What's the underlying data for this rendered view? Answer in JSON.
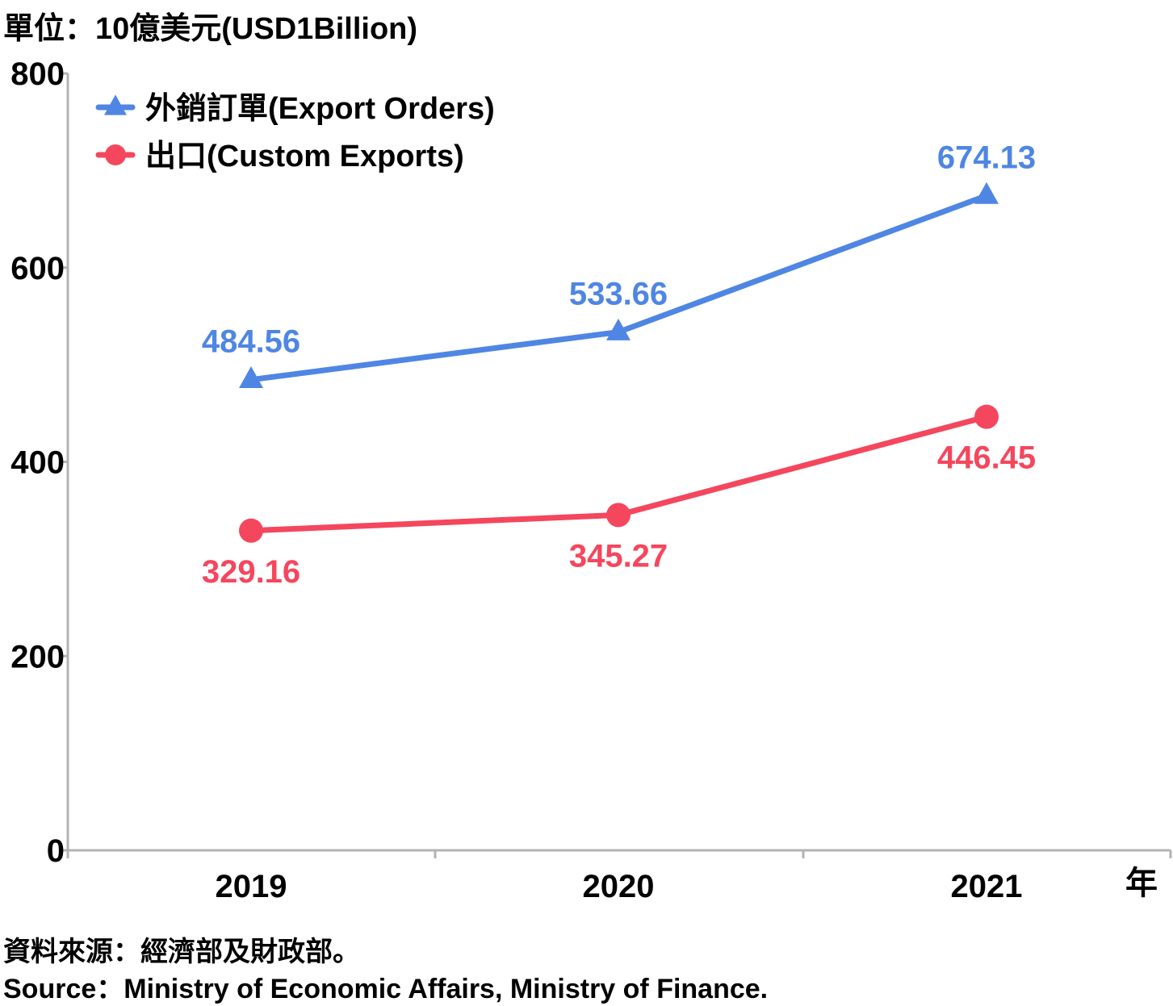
{
  "header": {
    "unit": "單位：10億美元(USD1Billion)"
  },
  "footer": {
    "source_cn": "資料來源：經濟部及財政部。",
    "source_en": "Source：Ministry of Economic Affairs, Ministry of Finance."
  },
  "chart_data": {
    "type": "line",
    "title": "",
    "xlabel": "年",
    "ylabel": "",
    "categories": [
      "2019",
      "2020",
      "2021"
    ],
    "ylim": [
      0,
      800
    ],
    "yticks": [
      "0",
      "200",
      "400",
      "600",
      "800"
    ],
    "grid": false,
    "legend_position": "top-left",
    "series": [
      {
        "name": "外銷訂單(Export Orders)",
        "values": [
          484.56,
          533.66,
          674.13
        ],
        "labels": [
          "484.56",
          "533.66",
          "674.13"
        ],
        "color": "#4f86e4",
        "marker": "triangle",
        "label_position": "above"
      },
      {
        "name": "出口(Custom Exports)",
        "values": [
          329.16,
          345.27,
          446.45
        ],
        "labels": [
          "329.16",
          "345.27",
          "446.45"
        ],
        "color": "#f4475d",
        "marker": "circle",
        "label_position": "below"
      }
    ]
  }
}
